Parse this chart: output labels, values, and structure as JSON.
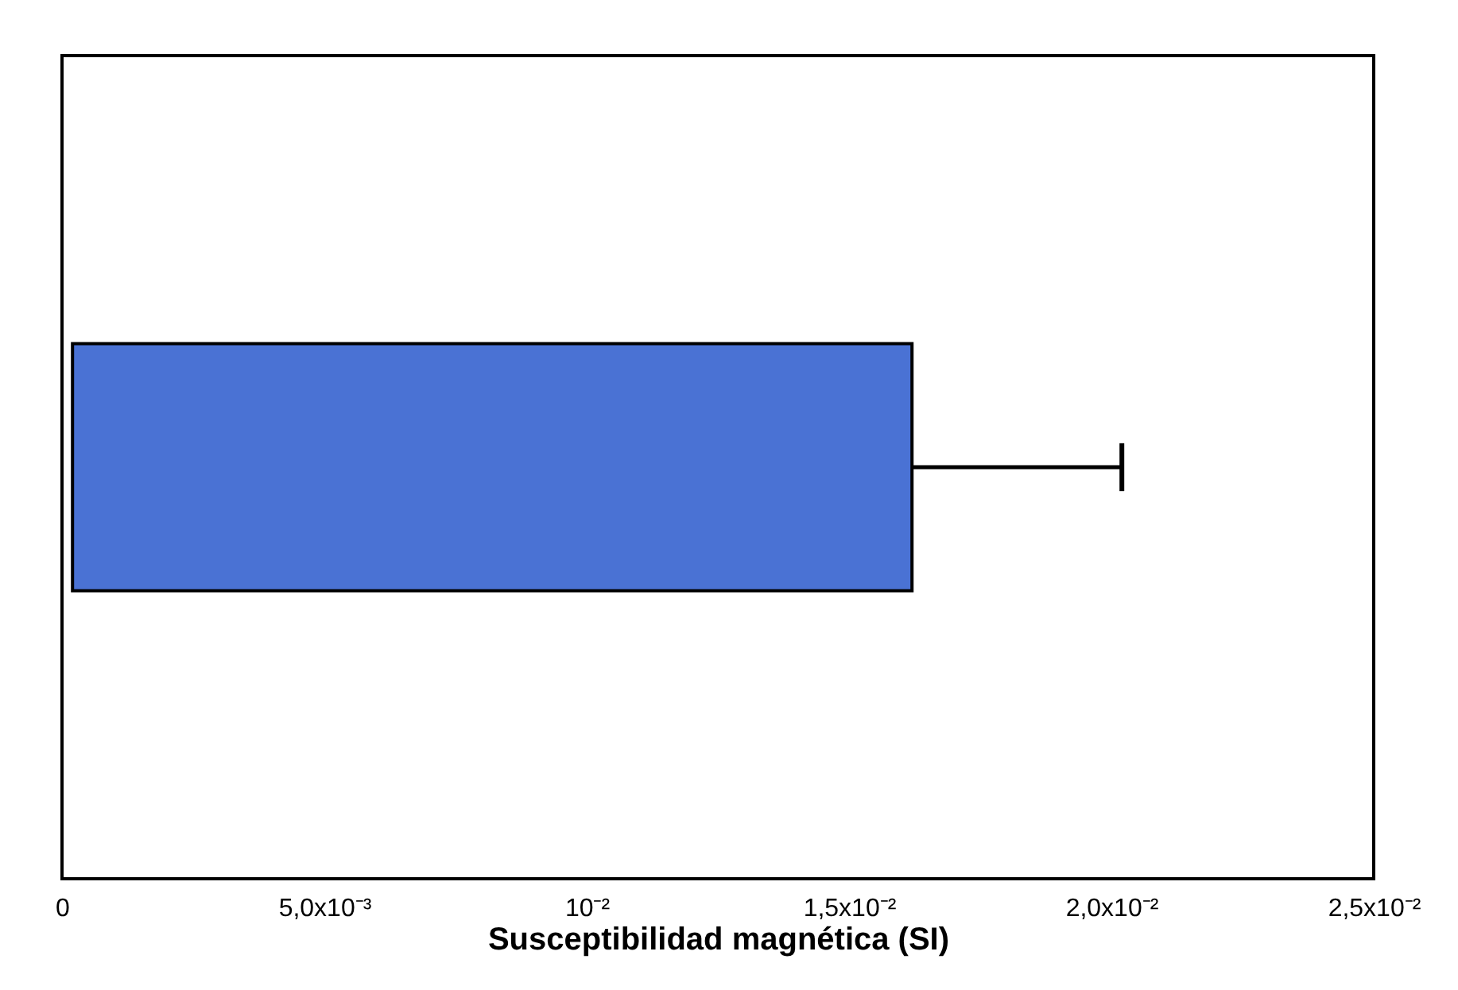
{
  "chart_data": {
    "type": "bar",
    "orientation": "horizontal",
    "categories": [
      null
    ],
    "values": [
      0.016
    ],
    "base": [
      0.0002
    ],
    "errors": [
      [
        0.0162,
        0.0202
      ]
    ],
    "color": "#4a72d4",
    "xlabel": "Susceptibilidad magnética (SI)",
    "xlim": [
      0,
      0.025
    ],
    "xticks": [
      0,
      {
        "value": 0.005,
        "label": "5,0x10⁻³"
      },
      {
        "value": 0.01,
        "label": "10⁻²"
      },
      {
        "value": 0.015,
        "label": "1,5x10⁻²"
      },
      {
        "value": 0.02,
        "label": "2,0x10⁻²"
      },
      {
        "value": 0.025,
        "label": "2,5x10⁻²"
      }
    ],
    "tick_labels": "x"
  }
}
